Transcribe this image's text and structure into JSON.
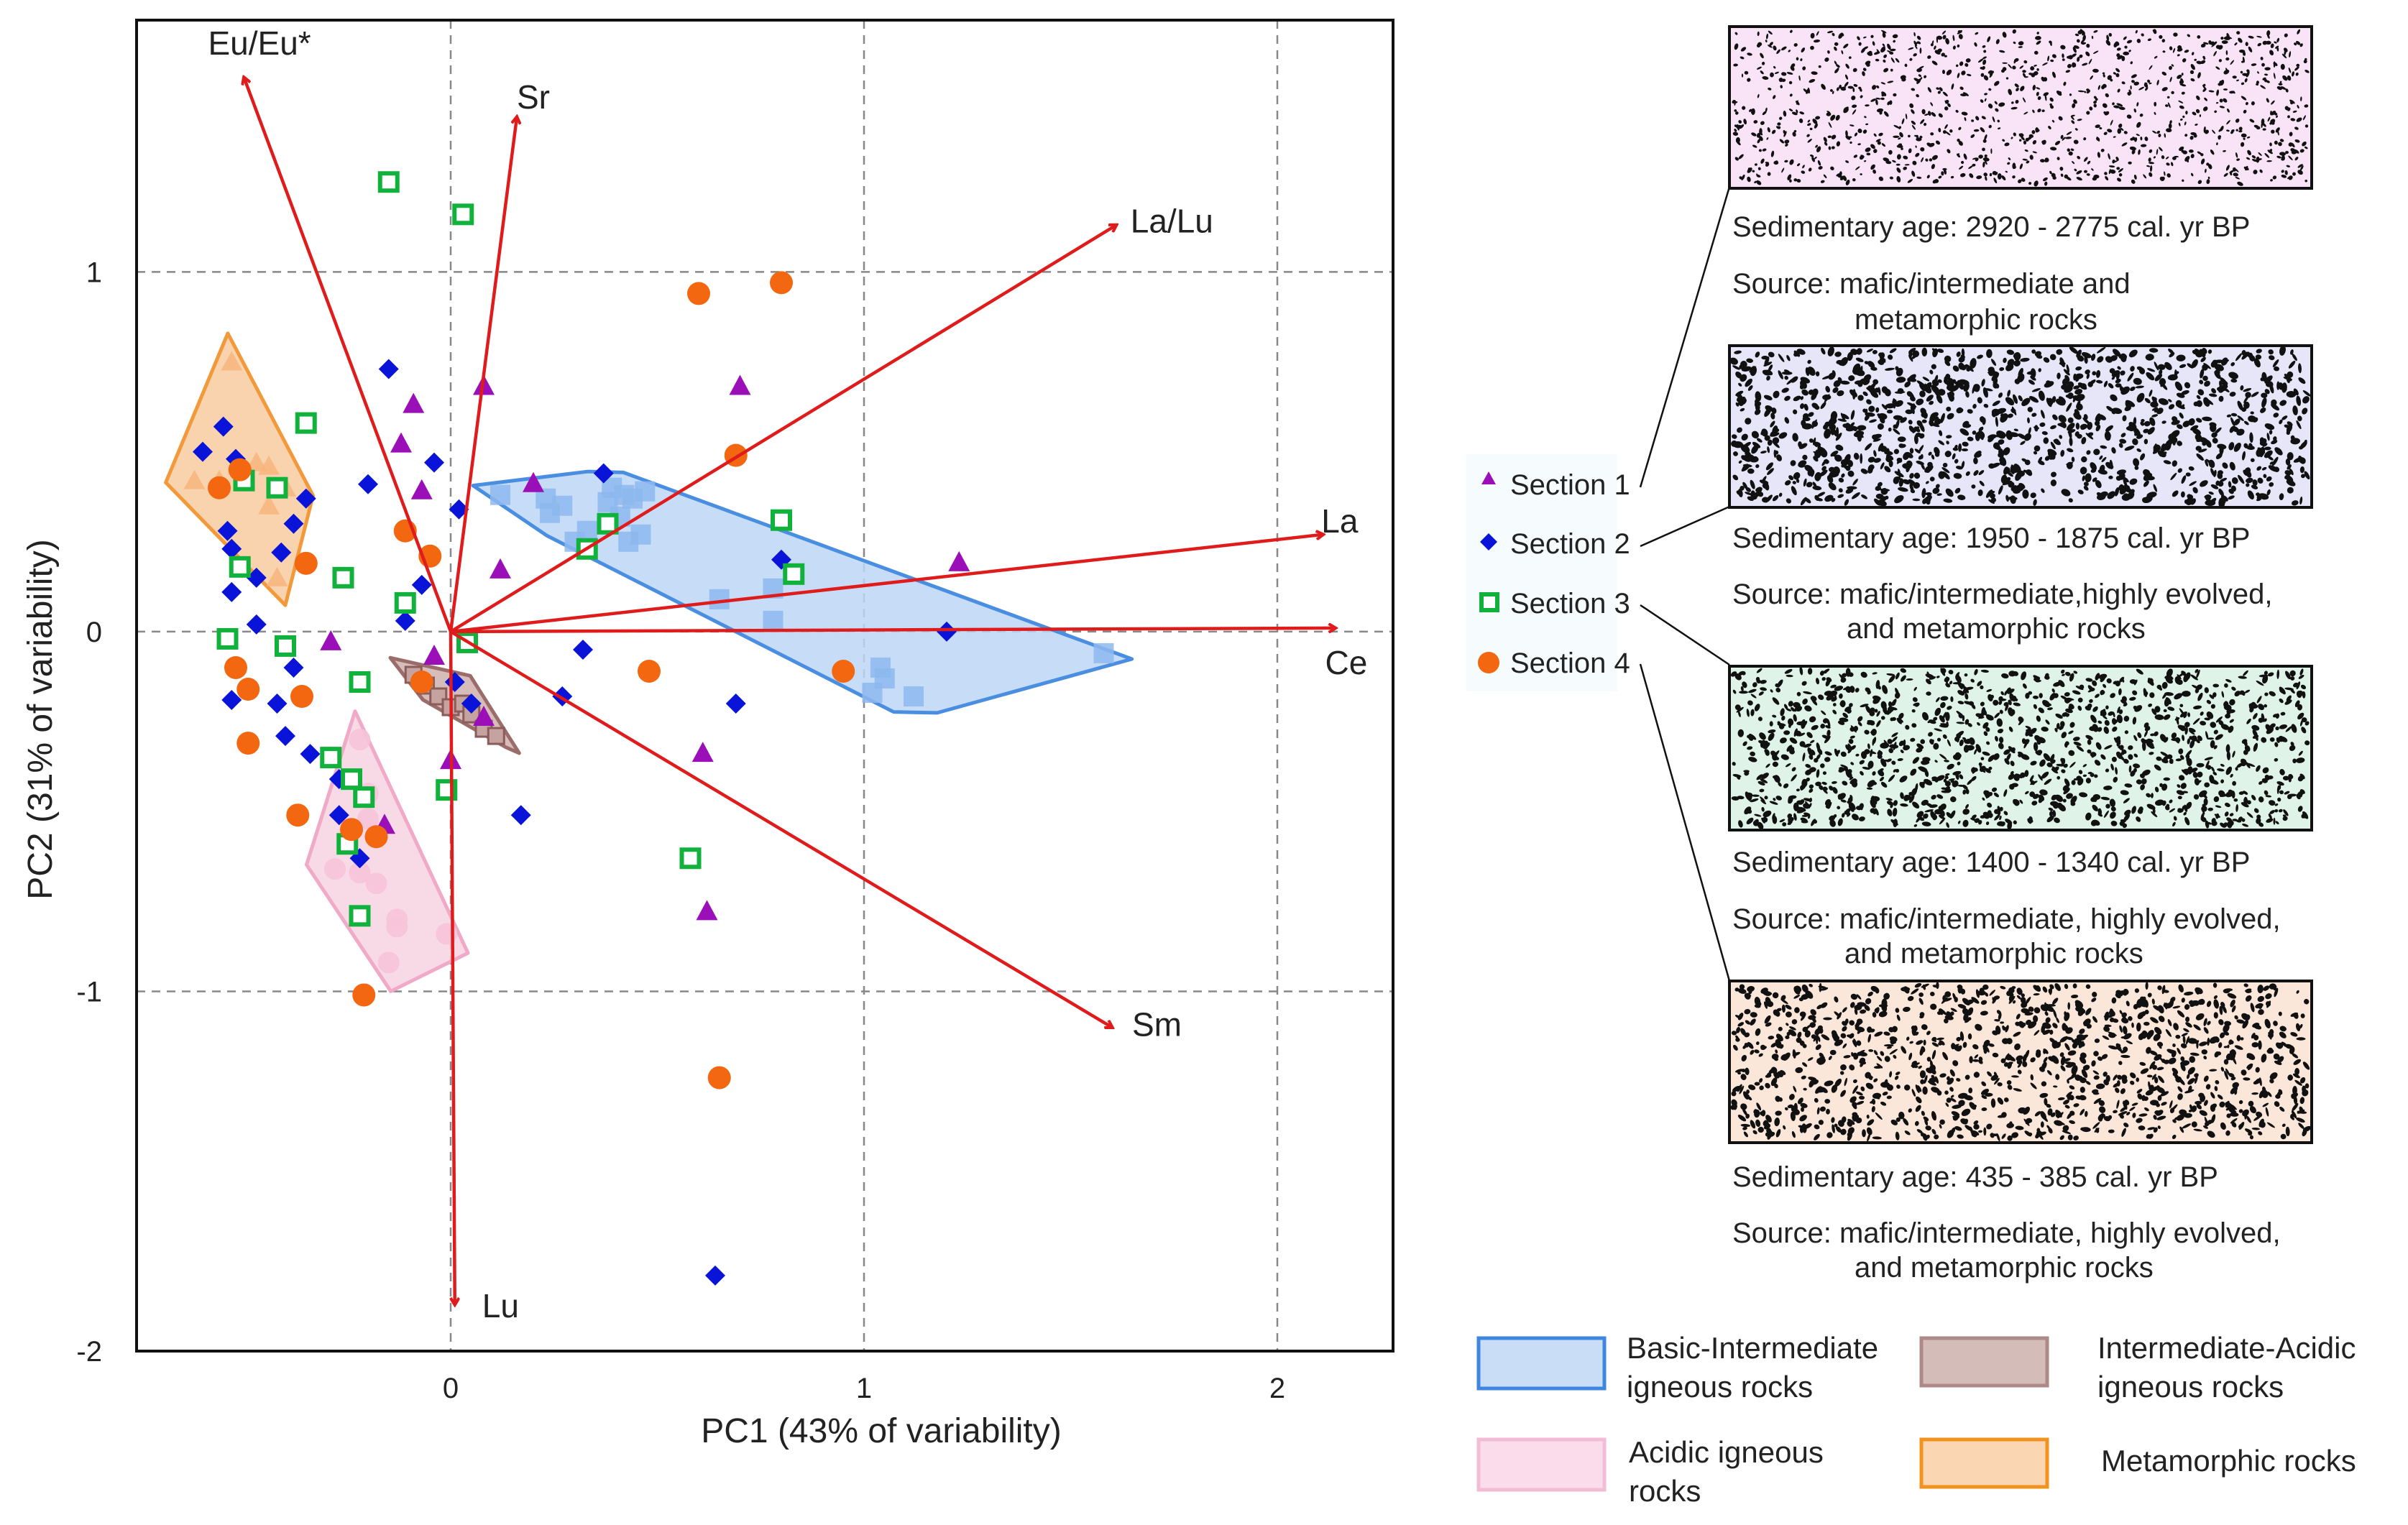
{
  "chart_data": {
    "type": "scatter",
    "subtype": "pca-biplot",
    "xlabel": "PC1 (43% of variability)",
    "ylabel": "PC2 (31% of variability)",
    "xlim": [
      -0.76,
      2.28
    ],
    "ylim": [
      -2.0,
      1.7
    ],
    "xticks": [
      {
        "v": 0,
        "label": "0"
      },
      {
        "v": 1,
        "label": "1"
      },
      {
        "v": 2,
        "label": "2"
      }
    ],
    "yticks": [
      {
        "v": 1,
        "label": "1"
      },
      {
        "v": 0,
        "label": "0"
      },
      {
        "v": -1,
        "label": "-1"
      },
      {
        "v": -2,
        "label": "-2"
      }
    ],
    "grid": "dashed at ticks",
    "loadings": [
      {
        "name": "Eu/Eu*",
        "x": -0.5,
        "y": 1.54
      },
      {
        "name": "Sr",
        "x": 0.16,
        "y": 1.43
      },
      {
        "name": "La/Lu",
        "x": 1.61,
        "y": 1.13
      },
      {
        "name": "La",
        "x": 2.11,
        "y": 0.27
      },
      {
        "name": "Ce",
        "x": 2.14,
        "y": 0.01
      },
      {
        "name": "Sm",
        "x": 1.6,
        "y": -1.1
      },
      {
        "name": "Lu",
        "x": 0.01,
        "y": -1.87
      }
    ],
    "series": [
      {
        "name": "Section 1",
        "marker": "triangle",
        "color": "#9a0fb8",
        "points": [
          [
            0.08,
            0.68
          ],
          [
            0.7,
            0.68
          ],
          [
            -0.09,
            0.63
          ],
          [
            -0.12,
            0.52
          ],
          [
            -0.07,
            0.39
          ],
          [
            0.2,
            0.41
          ],
          [
            0.12,
            0.17
          ],
          [
            1.23,
            0.19
          ],
          [
            -0.29,
            -0.03
          ],
          [
            -0.04,
            -0.07
          ],
          [
            0.08,
            -0.24
          ],
          [
            0.61,
            -0.34
          ],
          [
            0.0,
            -0.36
          ],
          [
            -0.16,
            -0.54
          ],
          [
            0.62,
            -0.78
          ]
        ]
      },
      {
        "name": "Section 2",
        "marker": "diamond",
        "color": "#0a14d8",
        "points": [
          [
            -0.15,
            0.73
          ],
          [
            -0.55,
            0.57
          ],
          [
            -0.6,
            0.5
          ],
          [
            -0.52,
            0.48
          ],
          [
            -0.42,
            0.4
          ],
          [
            -0.35,
            0.37
          ],
          [
            -0.2,
            0.41
          ],
          [
            -0.04,
            0.47
          ],
          [
            0.37,
            0.44
          ],
          [
            0.02,
            0.34
          ],
          [
            -0.54,
            0.28
          ],
          [
            -0.38,
            0.3
          ],
          [
            -0.53,
            0.23
          ],
          [
            -0.41,
            0.22
          ],
          [
            -0.47,
            0.15
          ],
          [
            -0.07,
            0.13
          ],
          [
            -0.53,
            0.11
          ],
          [
            -0.11,
            0.03
          ],
          [
            -0.47,
            0.02
          ],
          [
            0.32,
            -0.05
          ],
          [
            -0.38,
            -0.1
          ],
          [
            1.2,
            0.0
          ],
          [
            0.01,
            -0.14
          ],
          [
            0.27,
            -0.18
          ],
          [
            -0.53,
            -0.19
          ],
          [
            -0.42,
            -0.2
          ],
          [
            0.69,
            -0.2
          ],
          [
            0.05,
            -0.2
          ],
          [
            -0.4,
            -0.29
          ],
          [
            -0.34,
            -0.34
          ],
          [
            -0.27,
            -0.41
          ],
          [
            -0.27,
            -0.51
          ],
          [
            0.17,
            -0.51
          ],
          [
            -0.22,
            -0.63
          ],
          [
            0.8,
            0.2
          ],
          [
            0.64,
            -1.79
          ]
        ]
      },
      {
        "name": "Section 3",
        "marker": "open-square",
        "color": "#11b23c",
        "points": [
          [
            -0.15,
            1.25
          ],
          [
            0.03,
            1.16
          ],
          [
            -0.35,
            0.58
          ],
          [
            -0.5,
            0.42
          ],
          [
            -0.42,
            0.4
          ],
          [
            0.38,
            0.3
          ],
          [
            0.8,
            0.31
          ],
          [
            -0.51,
            0.18
          ],
          [
            -0.26,
            0.15
          ],
          [
            0.33,
            0.23
          ],
          [
            0.83,
            0.16
          ],
          [
            -0.11,
            0.08
          ],
          [
            -0.54,
            -0.02
          ],
          [
            -0.4,
            -0.04
          ],
          [
            0.04,
            -0.03
          ],
          [
            -0.22,
            -0.14
          ],
          [
            -0.01,
            -0.44
          ],
          [
            -0.29,
            -0.35
          ],
          [
            -0.24,
            -0.41
          ],
          [
            -0.21,
            -0.46
          ],
          [
            -0.25,
            -0.59
          ],
          [
            0.58,
            -0.63
          ],
          [
            -0.22,
            -0.79
          ]
        ]
      },
      {
        "name": "Section 4",
        "marker": "circle",
        "color": "#f2670f",
        "points": [
          [
            0.6,
            0.94
          ],
          [
            0.8,
            0.97
          ],
          [
            0.69,
            0.49
          ],
          [
            -0.51,
            0.45
          ],
          [
            -0.56,
            0.4
          ],
          [
            -0.11,
            0.28
          ],
          [
            -0.05,
            0.21
          ],
          [
            -0.35,
            0.19
          ],
          [
            -0.52,
            -0.1
          ],
          [
            -0.49,
            -0.16
          ],
          [
            0.48,
            -0.11
          ],
          [
            0.95,
            -0.11
          ],
          [
            -0.07,
            -0.14
          ],
          [
            -0.36,
            -0.18
          ],
          [
            -0.49,
            -0.31
          ],
          [
            -0.37,
            -0.51
          ],
          [
            -0.24,
            -0.55
          ],
          [
            -0.18,
            -0.57
          ],
          [
            -0.21,
            -1.01
          ],
          [
            0.65,
            -1.24
          ]
        ]
      }
    ],
    "reference_fields": [
      {
        "name": "Basic-Intermediate igneous rocks",
        "fill": "#bcd6f6",
        "stroke": "#4a8ee2",
        "points": [
          [
            0.12,
            0.38
          ],
          [
            0.23,
            0.37
          ],
          [
            0.24,
            0.33
          ],
          [
            0.27,
            0.35
          ],
          [
            0.3,
            0.25
          ],
          [
            0.33,
            0.28
          ],
          [
            0.38,
            0.36
          ],
          [
            0.39,
            0.4
          ],
          [
            0.42,
            0.38
          ],
          [
            0.44,
            0.37
          ],
          [
            0.47,
            0.39
          ],
          [
            0.41,
            0.32
          ],
          [
            0.43,
            0.25
          ],
          [
            0.46,
            0.27
          ],
          [
            0.65,
            0.09
          ],
          [
            0.78,
            0.12
          ],
          [
            0.78,
            0.03
          ],
          [
            1.04,
            -0.1
          ],
          [
            1.05,
            -0.13
          ],
          [
            1.02,
            -0.17
          ],
          [
            1.12,
            -0.18
          ],
          [
            1.58,
            -0.06
          ]
        ]
      },
      {
        "name": "Intermediate-Acidic igneous rocks",
        "fill": "#cfb2ae",
        "stroke": "#9a6d6b",
        "points": [
          [
            -0.09,
            -0.12
          ],
          [
            -0.06,
            -0.15
          ],
          [
            -0.03,
            -0.18
          ],
          [
            0.0,
            -0.21
          ],
          [
            0.03,
            -0.2
          ],
          [
            0.05,
            -0.23
          ],
          [
            0.08,
            -0.27
          ],
          [
            0.11,
            -0.29
          ]
        ]
      },
      {
        "name": "Acidic igneous rocks",
        "fill": "#f7d2e2",
        "stroke": "#f0a9c7",
        "points": [
          [
            -0.22,
            -0.3
          ],
          [
            -0.2,
            -0.45
          ],
          [
            -0.2,
            -0.52
          ],
          [
            -0.28,
            -0.66
          ],
          [
            -0.22,
            -0.67
          ],
          [
            -0.18,
            -0.7
          ],
          [
            -0.13,
            -0.82
          ],
          [
            -0.13,
            -0.8
          ],
          [
            -0.15,
            -0.92
          ],
          [
            -0.01,
            -0.84
          ]
        ]
      },
      {
        "name": "Metamorphic rocks",
        "fill": "#f8cba0",
        "stroke": "#f29a3b",
        "points": [
          [
            -0.53,
            0.75
          ],
          [
            -0.62,
            0.42
          ],
          [
            -0.56,
            0.42
          ],
          [
            -0.47,
            0.47
          ],
          [
            -0.44,
            0.46
          ],
          [
            -0.4,
            0.4
          ],
          [
            -0.44,
            0.35
          ],
          [
            -0.42,
            0.15
          ]
        ]
      }
    ],
    "legend": {
      "position": "right",
      "entries": [
        "Section 1",
        "Section 2",
        "Section 3",
        "Section 4"
      ]
    }
  },
  "samples": [
    {
      "age": "Sedimentary age: 2920 - 2775 cal. yr BP",
      "source_line1": "Source: mafic/intermediate and",
      "source_line2": "metamorphic rocks",
      "fill": "#f8e4f6"
    },
    {
      "age": "Sedimentary age: 1950 - 1875 cal. yr BP",
      "source_line1": "Source: mafic/intermediate,highly evolved,",
      "source_line2": "and metamorphic rocks",
      "fill": "#e6e6f8"
    },
    {
      "age": "Sedimentary age: 1400 - 1340 cal. yr BP",
      "source_line1": "Source: mafic/intermediate, highly  evolved,",
      "source_line2": "and metamorphic rocks",
      "fill": "#dff3e8"
    },
    {
      "age": "Sedimentary age: 435 - 385 cal. yr BP",
      "source_line1": "Source: mafic/intermediate, highly evolved,",
      "source_line2": "and metamorphic rocks",
      "fill": "#fbe7da"
    }
  ],
  "field_legend": [
    {
      "line1": "Basic-Intermediate",
      "line2": "igneous rocks",
      "fill": "#c9ddf7",
      "stroke": "#3e86df"
    },
    {
      "line1": "Intermediate-Acidic",
      "line2": "igneous rocks",
      "fill": "#d4bcb8",
      "stroke": "#ad8a87"
    },
    {
      "line1": "Acidic igneous",
      "line2": "rocks",
      "fill": "#fbdcea",
      "stroke": "#f3bcd5"
    },
    {
      "line1": "Metamorphic rocks",
      "line2": "",
      "fill": "#fbd6b3",
      "stroke": "#f2921f"
    }
  ]
}
